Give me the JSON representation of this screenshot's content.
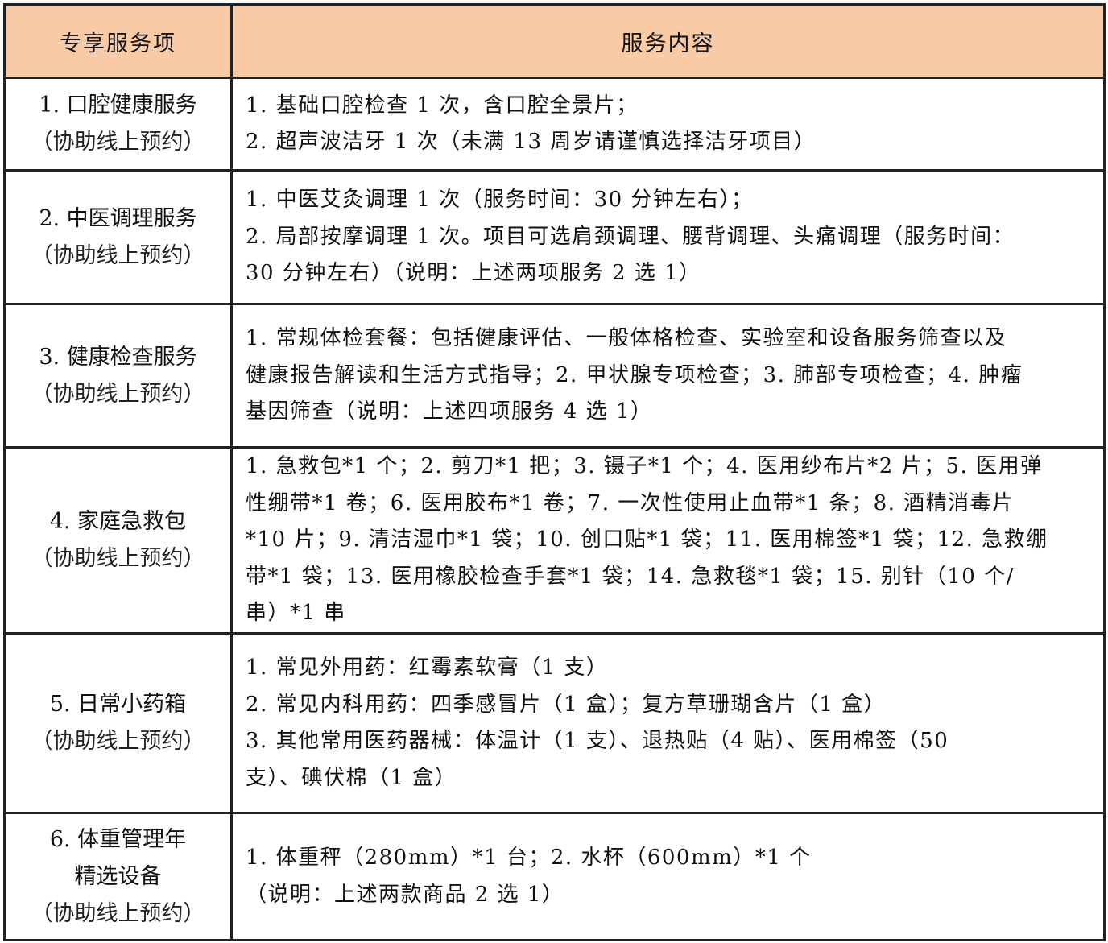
{
  "header": {
    "col1": "专享服务项",
    "col2": "服务内容"
  },
  "rows": [
    {
      "title_lines": [
        "1. 口腔健康服务"
      ],
      "note": "（协助线上预约）",
      "content_lines": [
        "1.  基础口腔检查 1 次，含口腔全景片；",
        "2.  超声波洁牙 1 次（未满 13 周岁请谨慎选择洁牙项目）"
      ]
    },
    {
      "title_lines": [
        "2. 中医调理服务"
      ],
      "note": "（协助线上预约）",
      "content_lines": [
        "1. 中医艾灸调理 1 次（服务时间：30 分钟左右）；",
        "2. 局部按摩调理 1 次。项目可选肩颈调理、腰背调理、头痛调理（服务时间：",
        "30 分钟左右）（说明：上述两项服务 2 选 1）"
      ]
    },
    {
      "title_lines": [
        "3. 健康检查服务"
      ],
      "note": "（协助线上预约）",
      "content_lines": [
        "1. 常规体检套餐：包括健康评估、一般体格检查、实验室和设备服务筛查以及",
        "健康报告解读和生活方式指导；2. 甲状腺专项检查；3. 肺部专项检查；4. 肿瘤",
        "基因筛查（说明：上述四项服务 4 选 1）"
      ]
    },
    {
      "title_lines": [
        "4. 家庭急救包"
      ],
      "note": "（协助线上预约）",
      "content_lines": [
        "1. 急救包*1 个；2. 剪刀*1 把；3. 镊子*1 个；4. 医用纱布片*2 片；5. 医用弹",
        "性绷带*1 卷；6. 医用胶布*1 卷；7. 一次性使用止血带*1 条；8. 酒精消毒片",
        "*10 片；9. 清洁湿巾*1 袋；10. 创口贴*1 袋；11. 医用棉签*1 袋；12. 急救绷",
        "带*1 袋；13. 医用橡胶检查手套*1 袋；14. 急救毯*1 袋；15. 别针（10 个/",
        "串）*1 串"
      ]
    },
    {
      "title_lines": [
        "5. 日常小药箱"
      ],
      "note": "（协助线上预约）",
      "content_lines": [
        "1. 常见外用药：红霉素软膏（1 支）",
        "2. 常见内科用药：四季感冒片（1 盒）；复方草珊瑚含片（1 盒）",
        "3. 其他常用医药器械：体温计（1 支）、退热贴（4 贴）、医用棉签（50",
        "支）、碘伏棉（1 盒）"
      ]
    },
    {
      "title_lines": [
        "6.  体重管理年",
        "精选设备"
      ],
      "note": "（协助线上预约）",
      "content_lines": [
        "1. 体重秤（280mm）*1 台；2. 水杯（600mm）*1 个",
        "（说明：上述两款商品 2 选 1）"
      ]
    }
  ]
}
